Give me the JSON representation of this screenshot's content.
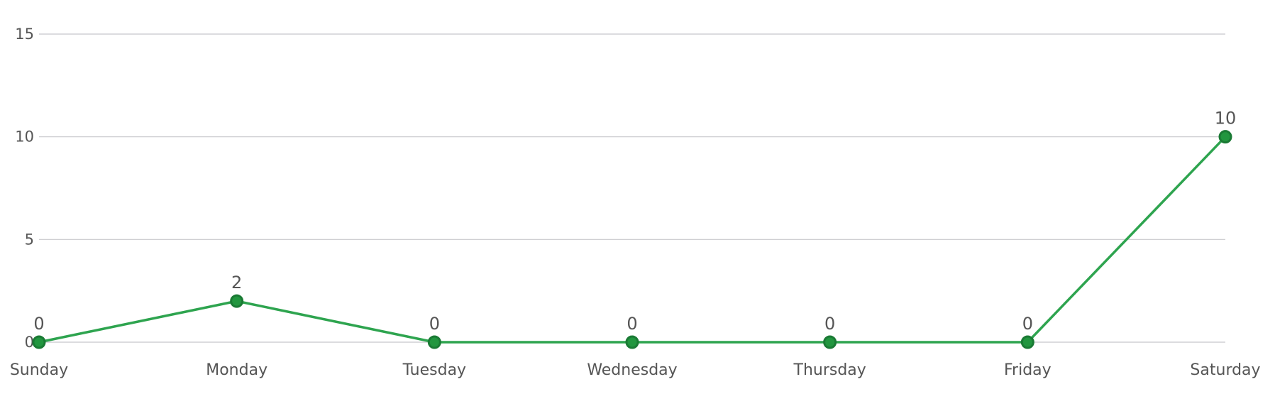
{
  "chart_data": {
    "type": "line",
    "title": "",
    "xlabel": "",
    "ylabel": "",
    "categories": [
      "Sunday",
      "Monday",
      "Tuesday",
      "Wednesday",
      "Thursday",
      "Friday",
      "Saturday"
    ],
    "series": [
      {
        "values": [
          0,
          2,
          0,
          0,
          0,
          0,
          10
        ],
        "color": "#2ea44f",
        "marker_fill": "#22963f",
        "marker_stroke": "#1a7a34"
      }
    ],
    "data_labels": [
      "0",
      "2",
      "0",
      "0",
      "0",
      "0",
      "10"
    ],
    "ylim": [
      0,
      15
    ],
    "yticks": [
      0,
      5,
      10,
      15
    ],
    "ytick_labels": [
      "0",
      "5",
      "10",
      "15"
    ],
    "grid": true,
    "legend": "none"
  }
}
